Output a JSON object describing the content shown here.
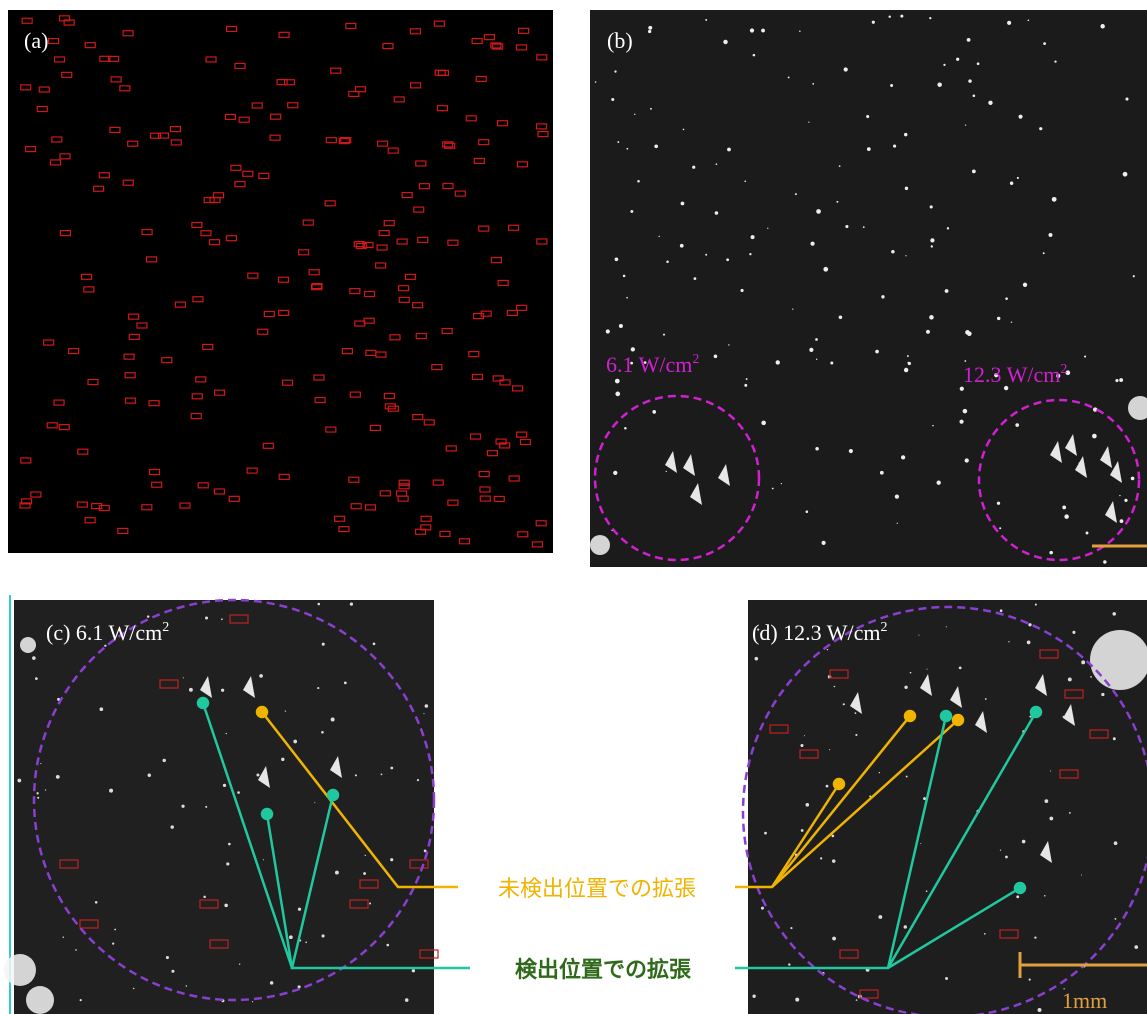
{
  "panels": {
    "a": {
      "label": "(a)"
    },
    "b": {
      "label": "(b)",
      "left_circle": {
        "text": "6.1 W/cm",
        "sup": "2"
      },
      "right_circle": {
        "text": "12.3 W/cm",
        "sup": "2"
      }
    },
    "c": {
      "label": "(c) 6.1 W/cm",
      "sup": "2"
    },
    "d": {
      "label": "(d) 12.3 W/cm",
      "sup": "2",
      "scale_bar": "1mm"
    }
  },
  "annotations": {
    "undetected": "未検出位置での拡張",
    "detected": "検出位置での拡張"
  }
}
